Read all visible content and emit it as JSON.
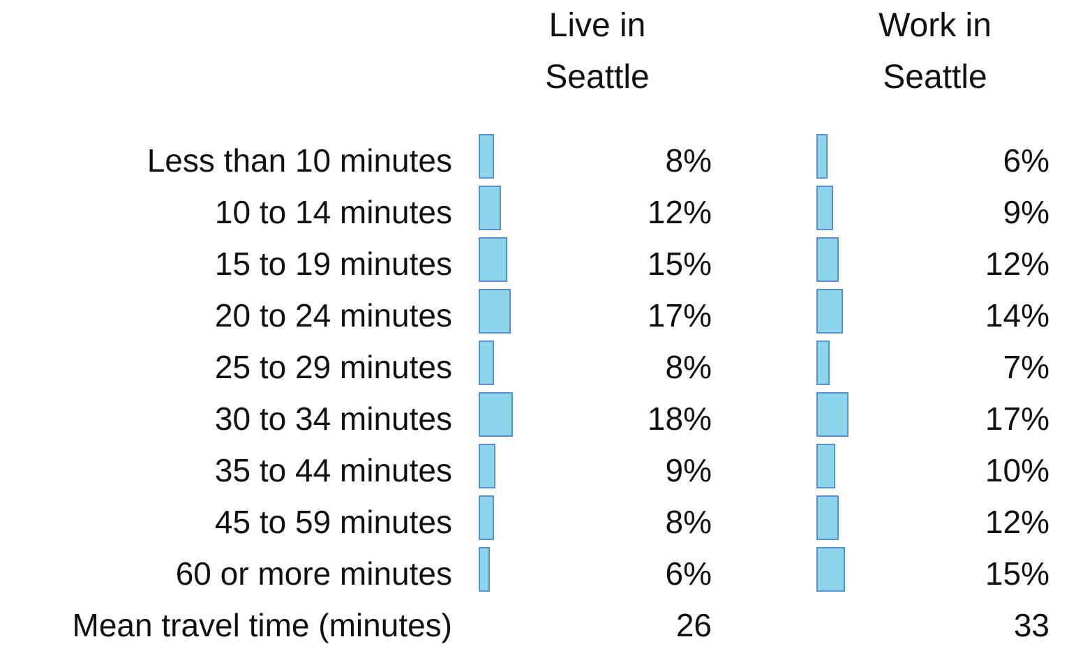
{
  "chart_data": {
    "type": "table",
    "series": [
      {
        "name": "Live in\nSeattle",
        "values": [
          8,
          12,
          15,
          17,
          8,
          18,
          9,
          8,
          6
        ],
        "labels": [
          "8%",
          "12%",
          "15%",
          "17%",
          "8%",
          "18%",
          "9%",
          "8%",
          "6%"
        ],
        "mean_value": 26,
        "mean_label": "26"
      },
      {
        "name": "Work in\nSeattle",
        "values": [
          6,
          9,
          12,
          14,
          7,
          17,
          10,
          12,
          15
        ],
        "labels": [
          "6%",
          "9%",
          "12%",
          "14%",
          "7%",
          "17%",
          "10%",
          "12%",
          "15%"
        ],
        "mean_value": 33,
        "mean_label": "33"
      }
    ],
    "categories": [
      "Less than 10 minutes",
      "10 to 14 minutes",
      "15 to 19 minutes",
      "20 to 24 minutes",
      "25 to 29 minutes",
      "30 to 34 minutes",
      "35 to 44 minutes",
      "45 to 59 minutes",
      "60 or more minutes"
    ],
    "mean_row_label": "Mean travel time (minutes)",
    "bar_color": "#8cd4ea",
    "bar_border_color": "#5b8fd0"
  }
}
